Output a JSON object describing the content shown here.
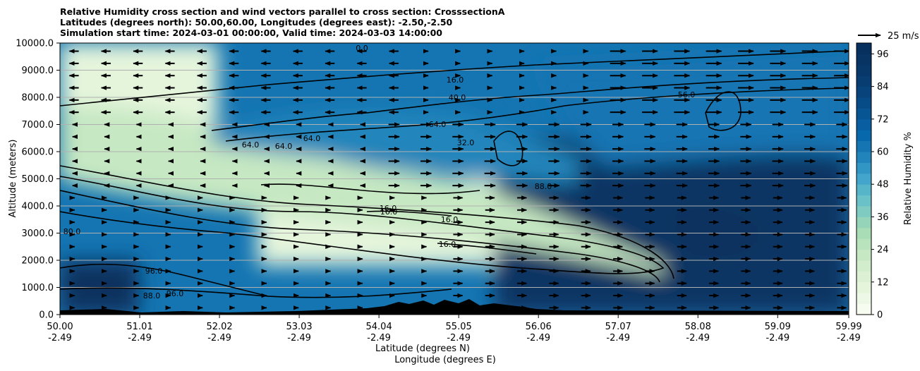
{
  "titles": {
    "line1": "Relative Humidity cross section and wind vectors parallel to cross section: CrosssectionA",
    "line2": "Latitudes (degrees north): 50.00,60.00, Longitudes (degrees east): -2.50,-2.50",
    "line3": "Simulation start time: 2024-03-01 00:00:00, Valid time: 2024-03-03 14:00:00"
  },
  "chart_data": {
    "type": "heatmap",
    "title": "Relative Humidity cross section and wind vectors parallel to cross section: CrosssectionA",
    "xlabel": "Latitude (degrees N)",
    "xlabel2": "Longitude (degrees E)",
    "ylabel": "Altitude (meters)",
    "ylim": [
      0,
      10000
    ],
    "xlim": [
      50.0,
      59.99
    ],
    "x_ticks": [
      {
        "lat": "50.00",
        "lon": "-2.49"
      },
      {
        "lat": "51.01",
        "lon": "-2.49"
      },
      {
        "lat": "52.02",
        "lon": "-2.49"
      },
      {
        "lat": "53.03",
        "lon": "-2.49"
      },
      {
        "lat": "54.04",
        "lon": "-2.49"
      },
      {
        "lat": "55.05",
        "lon": "-2.49"
      },
      {
        "lat": "56.06",
        "lon": "-2.49"
      },
      {
        "lat": "57.07",
        "lon": "-2.49"
      },
      {
        "lat": "58.08",
        "lon": "-2.49"
      },
      {
        "lat": "59.09",
        "lon": "-2.49"
      },
      {
        "lat": "59.99",
        "lon": "-2.49"
      }
    ],
    "y_ticks": [
      "0.0",
      "1000.0",
      "2000.0",
      "3000.0",
      "4000.0",
      "5000.0",
      "6000.0",
      "7000.0",
      "8000.0",
      "9000.0",
      "10000.0"
    ],
    "y_tick_values": [
      0,
      1000,
      2000,
      3000,
      4000,
      5000,
      6000,
      7000,
      8000,
      9000,
      10000
    ],
    "grid": "horizontal",
    "colorbar": {
      "label": "Relative Humidity %",
      "ticks": [
        "0",
        "12",
        "24",
        "36",
        "48",
        "60",
        "72",
        "84",
        "96"
      ],
      "tick_values": [
        0,
        12,
        24,
        36,
        48,
        60,
        72,
        84,
        96
      ],
      "range": [
        0,
        100
      ],
      "levels": 25,
      "colors": [
        "#f7fcf0",
        "#eef8e6",
        "#e5f5dc",
        "#dcf1d4",
        "#d2edcc",
        "#c6e8c2",
        "#b8e3bd",
        "#a8ddb5",
        "#95d4b9",
        "#80cbc1",
        "#6bc1c8",
        "#57b5ca",
        "#43a5cb",
        "#3196c4",
        "#2185bb",
        "#1475b2",
        "#0868ac",
        "#085ea1",
        "#085594",
        "#084c87",
        "#08447b",
        "#083d72",
        "#08386a",
        "#083464",
        "#08305e"
      ]
    },
    "quiver_key": {
      "label": "25 m/s",
      "speed": 25
    },
    "contour_labels": [
      "16.0",
      "40.0",
      "64.0",
      "64.0",
      "64.0",
      "64.0",
      "32.0",
      "88.0",
      "80.0",
      "96.0",
      "96.0",
      "88.0",
      "16.0",
      "16.0",
      "16.0",
      "16.0",
      "56.0",
      "0.0"
    ],
    "fields": [
      {
        "lat_from": 50.0,
        "lat_to": 51.0,
        "alt_from": 0,
        "alt_to": 2000,
        "rh": 96
      },
      {
        "lat_from": 50.0,
        "lat_to": 52.0,
        "alt_from": 7000,
        "alt_to": 10000,
        "rh": 8
      },
      {
        "lat_from": 52.5,
        "lat_to": 57.5,
        "alt_from": 1800,
        "alt_to": 5000,
        "rh": 8
      },
      {
        "lat_from": 55.5,
        "lat_to": 59.99,
        "alt_from": 0,
        "alt_to": 6500,
        "rh": 92
      },
      {
        "lat_from": 52.5,
        "lat_to": 55.5,
        "alt_from": 5500,
        "alt_to": 7200,
        "rh": 64
      }
    ]
  }
}
